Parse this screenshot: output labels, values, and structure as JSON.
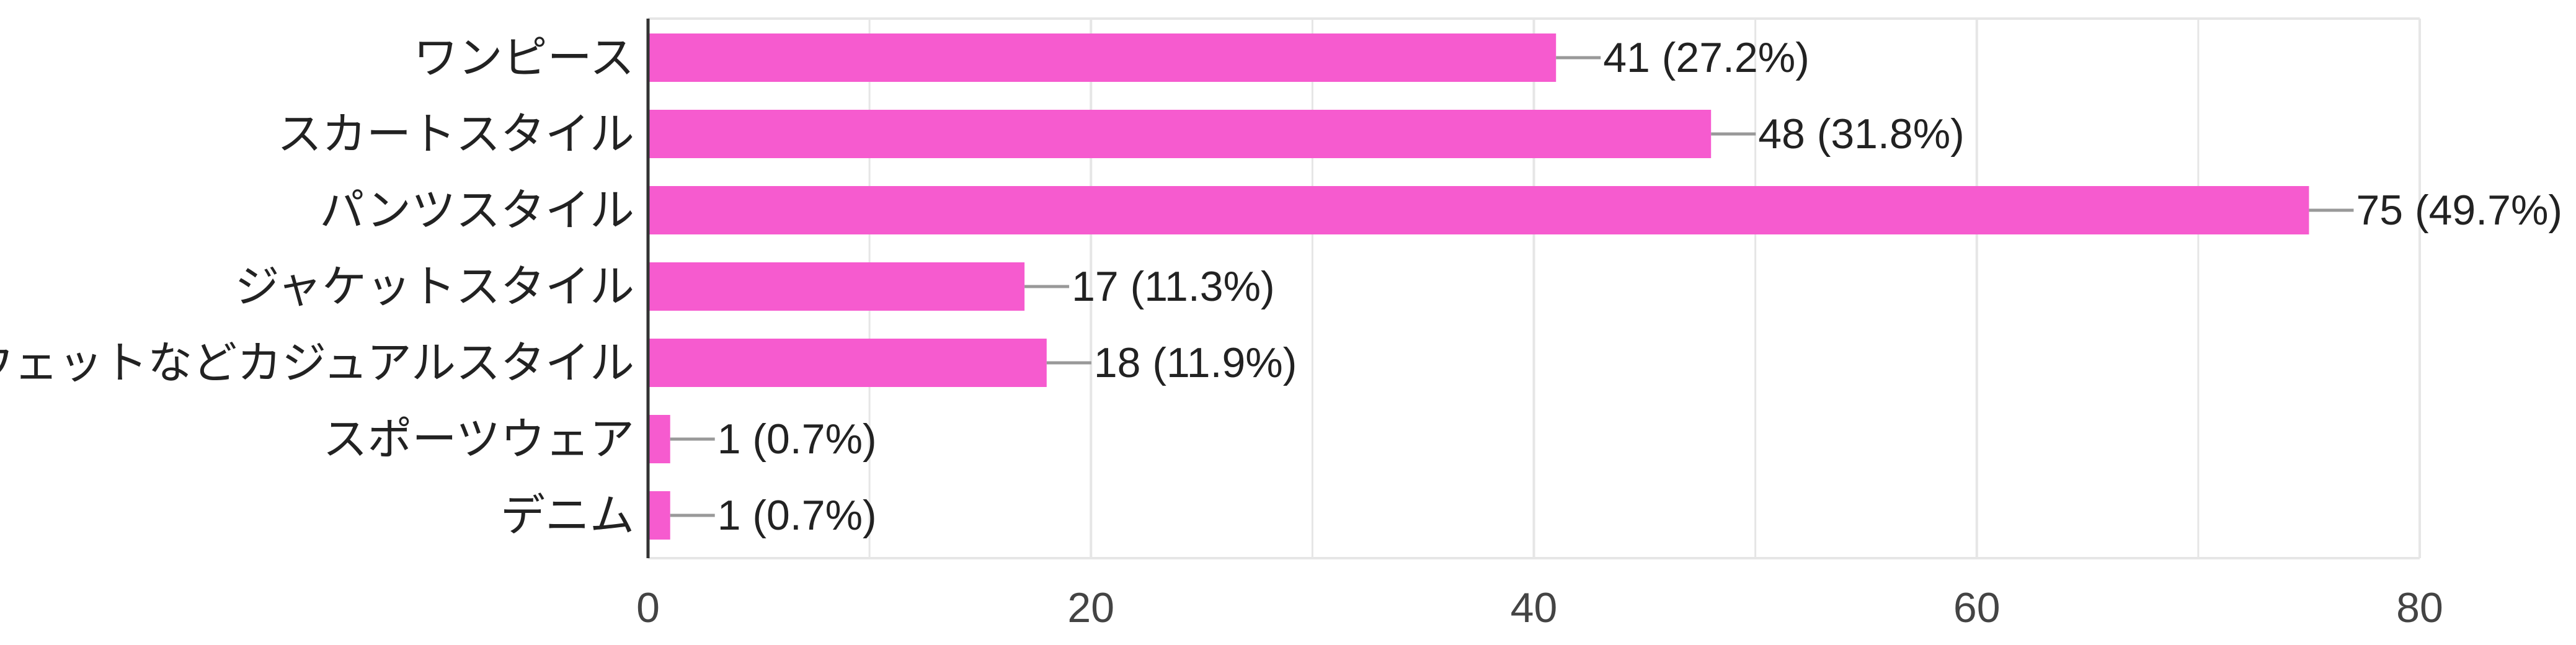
{
  "chart_data": {
    "type": "bar",
    "orientation": "horizontal",
    "categories": [
      "ワンピース",
      "スカートスタイル",
      "パンツスタイル",
      "ジャケットスタイル",
      "スウェットなどカジュアルスタイル",
      "スポーツウェア",
      "デニム"
    ],
    "values": [
      41,
      48,
      75,
      17,
      18,
      1,
      1
    ],
    "data_labels": [
      "41 (27.2%)",
      "48 (31.8%)",
      "75 (49.7%)",
      "17 (11.3%)",
      "18 (11.9%)",
      "1 (0.7%)",
      "1 (0.7%)"
    ],
    "x_ticks": [
      "0",
      "20",
      "40",
      "60",
      "80"
    ],
    "xlim": [
      0,
      80
    ],
    "title": "",
    "xlabel": "",
    "ylabel": "",
    "grid": true,
    "legend": "none",
    "colors": {
      "bar": "#f65bcf",
      "grid": "#e6e6e6",
      "axis": "#333333",
      "leader": "#999999"
    }
  }
}
